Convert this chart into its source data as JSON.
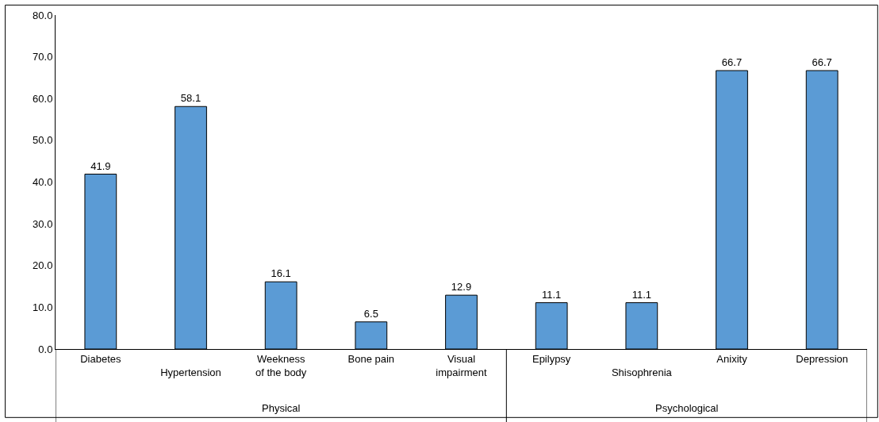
{
  "chart_data": {
    "type": "bar",
    "categories": [
      "Diabetes",
      "Hypertension",
      "Weekness of the body",
      "Bone pain",
      "Visual impairment",
      "Epilypsy",
      "Shisophrenia",
      "Anixity",
      "Depression"
    ],
    "values": [
      41.9,
      58.1,
      16.1,
      6.5,
      12.9,
      11.1,
      11.1,
      66.7,
      66.7
    ],
    "color": "#5b9bd5",
    "ylim": [
      0,
      80
    ],
    "yticks": [
      {
        "value": 0,
        "label": "0.0"
      },
      {
        "value": 10,
        "label": "10.0"
      },
      {
        "value": 20,
        "label": "20.0"
      },
      {
        "value": 30,
        "label": "30.0"
      },
      {
        "value": 40,
        "label": "40.0"
      },
      {
        "value": 50,
        "label": "50.0"
      },
      {
        "value": 60,
        "label": "60.0"
      },
      {
        "value": 70,
        "label": "70.0"
      },
      {
        "value": 80,
        "label": "80.0"
      }
    ],
    "data_labels": true,
    "legend": false,
    "annotations": [
      "Physical",
      "Psychological"
    ]
  }
}
